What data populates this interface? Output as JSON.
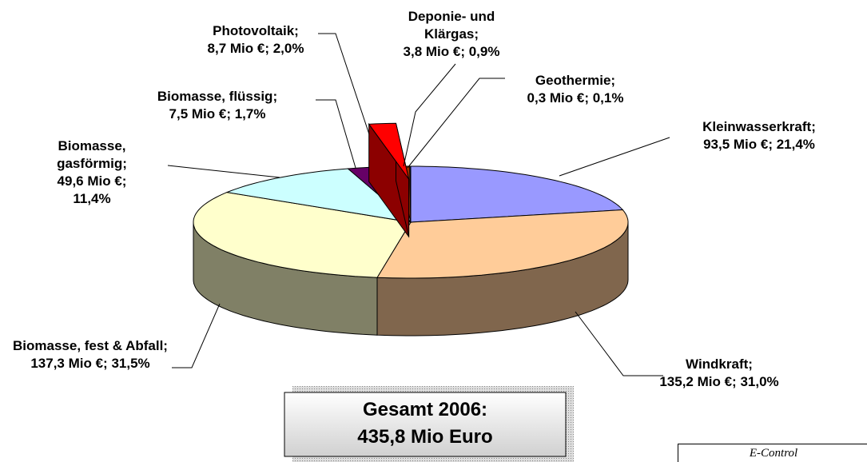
{
  "chart_data": {
    "type": "pie",
    "categories": [
      "Kleinwasserkraft;",
      "Windkraft;",
      "Biomasse, fest & Abfall;",
      "Biomasse, gasförmig;",
      "Biomasse, flüssig;",
      "Photovoltaik;",
      "Deponie- und Klärgas;",
      "Geothermie;"
    ],
    "values": [
      93.5,
      135.2,
      137.3,
      49.6,
      7.5,
      8.7,
      3.8,
      0.3
    ],
    "value_labels": [
      "93,5 Mio €; 21,4%",
      "135,2 Mio €; 31,0%",
      "137,3 Mio €; 31,5%",
      "49,6 Mio €; 11,4%",
      "7,5 Mio €; 1,7%",
      "8,7 Mio €; 2,0%",
      "3,8 Mio €; 0,9%",
      "0,3 Mio €; 0,1%"
    ],
    "colors": [
      "#9999ff",
      "#ffcc99",
      "#ffffcc",
      "#ccffff",
      "#660066",
      "#ff0000",
      "#993300",
      "#0066cc"
    ],
    "explode": [
      0,
      0,
      0,
      0,
      0,
      1,
      0,
      0
    ],
    "annotations": [
      "Gesamt 2006:",
      "435,8 Mio Euro"
    ],
    "source": "E-Control"
  }
}
